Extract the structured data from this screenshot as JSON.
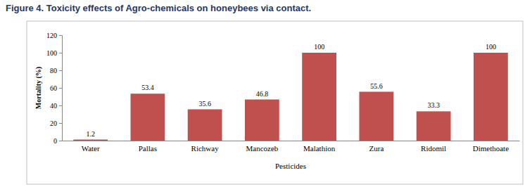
{
  "chart_data": {
    "type": "bar",
    "title": "Figure 4. Toxicity effects of Agro-chemicals on honeybees via contact.",
    "x_label": "Pesticides",
    "y_label": "Mortality (%)",
    "categories": [
      "Water",
      "Pallas",
      "Richway",
      "Mancozeb",
      "Malathion",
      "Zura",
      "Ridomil",
      "Dimethoate"
    ],
    "values": [
      1.2,
      53.4,
      35.6,
      46.8,
      100,
      55.6,
      33.3,
      100
    ],
    "color": "#c0504d",
    "ylim": [
      0,
      120
    ],
    "yticks": [
      0,
      20,
      40,
      60,
      80,
      100,
      120
    ],
    "grid": false,
    "data_labels": true
  }
}
